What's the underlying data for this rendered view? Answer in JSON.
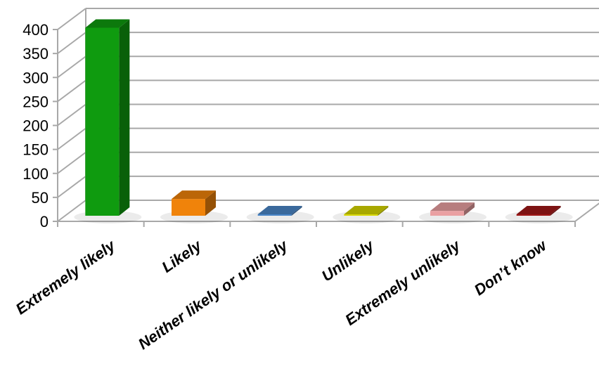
{
  "chart_data": {
    "type": "bar",
    "style": "3d-columns",
    "categories": [
      "Extremely likely",
      "Likely",
      "Neither likely or unlikely",
      "Unlikely",
      "Extremely unlikely",
      "Don’t know"
    ],
    "values": [
      392,
      35,
      3,
      3,
      10,
      3
    ],
    "colors": [
      "#0f9b0f",
      "#f0830a",
      "#4a86c8",
      "#d8d800",
      "#eaa0a2",
      "#a01818"
    ],
    "ylim": [
      0,
      400
    ],
    "yticks": [
      "0",
      "50",
      "100",
      "150",
      "200",
      "250",
      "300",
      "350",
      "400"
    ],
    "grid": true,
    "legend": "none"
  }
}
